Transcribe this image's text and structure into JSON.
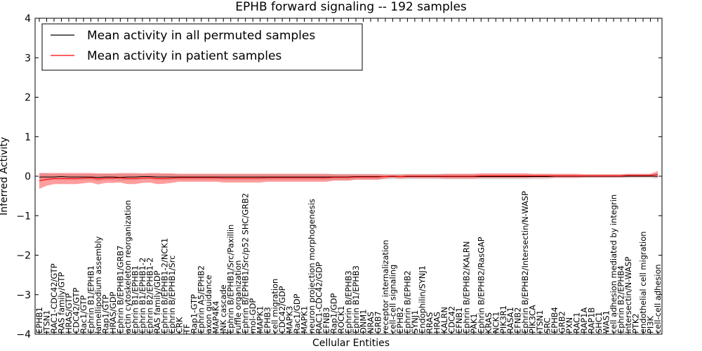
{
  "chart_data": {
    "type": "line",
    "title": "EPHB forward signaling -- 192 samples",
    "xlabel": "Cellular Entities",
    "ylabel": "Inferred Activity",
    "ylim": [
      -4,
      4
    ],
    "yticks": [
      -4,
      -3,
      -2,
      -1,
      0,
      1,
      2,
      3,
      4
    ],
    "grid": false,
    "legend_position": "top-left",
    "categories": [
      "EPHB1",
      "ITSN1",
      "RAC1-CDC42/GTP",
      "RAS family/GTP",
      "HRAS/GTP",
      "CDC42/GTP",
      "Rac1/GTP",
      "Ephrin B1/EPHB1",
      "lamellipodium assembly",
      "Rap1/GTP",
      "HRAS/GDP",
      "Ephrin B/EPHB1/GRB7",
      "actin cytoskeleton reorganization",
      "Ephrin B1/EPHB1",
      "Ephrin B1/EPHB1-2",
      "Ephrin B2/EPHB1-2",
      "RAS family/GDP",
      "Ephrin B/EPHB1-2/NCK1",
      "Ephrin B/EPHB1/Src",
      "CRK",
      "TF",
      "Rap1-GTP",
      "Ephrin A5/EPHB2",
      "axon guidance",
      "MAP4K4",
      "JNK cascade",
      "Ephrin B/EPHB1/Src/Paxillin",
      "ruffle organization",
      "Ephrin B/EPHB1/Src/p52 SHC/GRB2",
      "mol-GDP",
      "MAPK1",
      "EPHB3",
      "cell migration",
      "CDC42/GDP",
      "MAPK3",
      "Rac1/GDP",
      "MAPK1",
      "neuron projection morphogenesis",
      "RAC1-CDC42/GDP",
      "EFNB3",
      "Rap1/GDP",
      "ROCK1",
      "Ephrin B/EPHB3",
      "Ephrin B1/EPHB3",
      "DNM1",
      "NRAS",
      "GRB7",
      "receptor internalization",
      "cell-cell signaling",
      "EPHB2",
      "Ephrin B/EPHB2",
      "SYNJ1",
      "Endophilin/SYNJ1",
      "RRAS",
      "HRAS",
      "KALRN",
      "CDC42",
      "EFNB1",
      "Ephrin B/EPHB2/KALRN",
      "PAK1",
      "Ephrin B/EPHB2/RasGAP",
      "KRAS",
      "NCK1",
      "PIK3R1",
      "RASA1",
      "EFNB2",
      "Ephrin B/EPHB2/Intersectin/N-WASP",
      "PIK3CA",
      "ITSN1",
      "SRC",
      "EPHB4",
      "GRB2",
      "PXN",
      "RAC1",
      "RAP1A",
      "RAP1B",
      "SHC1",
      "WAS1",
      "cell adhesion mediated by integrin",
      "Ephrin B2/EPHB4",
      "Intersectin/N-WASP",
      "PTK2",
      "endothelial cell migration",
      "PI3K",
      "cell-cell adhesion"
    ],
    "series": [
      {
        "name": "Mean activity in all permuted samples",
        "color": "#000000",
        "values": [
          -0.02,
          -0.02,
          -0.02,
          -0.01,
          -0.02,
          -0.02,
          -0.02,
          -0.02,
          -0.03,
          -0.02,
          -0.02,
          -0.03,
          -0.02,
          -0.02,
          -0.01,
          -0.01,
          -0.02,
          -0.02,
          -0.02,
          -0.02,
          -0.02,
          -0.02,
          -0.02,
          -0.02,
          -0.02,
          -0.02,
          -0.02,
          -0.02,
          -0.02,
          -0.02,
          -0.02,
          -0.02,
          -0.02,
          -0.02,
          -0.02,
          -0.02,
          -0.02,
          -0.02,
          -0.02,
          -0.02,
          -0.02,
          -0.02,
          -0.02,
          -0.01,
          -0.01,
          -0.01,
          -0.01,
          -0.01,
          -0.01,
          -0.01,
          -0.01,
          -0.01,
          -0.01,
          -0.01,
          -0.01,
          -0.01,
          -0.01,
          -0.01,
          -0.01,
          -0.01,
          -0.01,
          -0.01,
          -0.01,
          -0.01,
          -0.01,
          -0.01,
          -0.01,
          -0.01,
          -0.01,
          -0.01,
          0.0,
          0.0,
          0.0,
          0.0,
          0.0,
          0.0,
          0.0,
          0.0,
          0.0,
          0.0,
          0.0,
          0.0,
          0.0,
          0.0,
          0.0
        ],
        "band": [
          0.09,
          0.09,
          0.08,
          0.08,
          0.08,
          0.08,
          0.08,
          0.08,
          0.09,
          0.08,
          0.08,
          0.09,
          0.08,
          0.08,
          0.07,
          0.07,
          0.08,
          0.08,
          0.08,
          0.08,
          0.08,
          0.08,
          0.08,
          0.08,
          0.08,
          0.08,
          0.08,
          0.08,
          0.08,
          0.08,
          0.08,
          0.08,
          0.08,
          0.08,
          0.08,
          0.08,
          0.08,
          0.08,
          0.08,
          0.08,
          0.08,
          0.08,
          0.08,
          0.07,
          0.07,
          0.07,
          0.07,
          0.07,
          0.07,
          0.07,
          0.07,
          0.07,
          0.07,
          0.07,
          0.07,
          0.07,
          0.07,
          0.07,
          0.07,
          0.07,
          0.07,
          0.07,
          0.07,
          0.07,
          0.07,
          0.07,
          0.07,
          0.07,
          0.07,
          0.07,
          0.05,
          0.05,
          0.05,
          0.05,
          0.05,
          0.05,
          0.05,
          0.05,
          0.05,
          0.05,
          0.05,
          0.05,
          0.05,
          0.05,
          0.07
        ]
      },
      {
        "name": "Mean activity in patient samples",
        "color": "#ff0000",
        "values": [
          -0.12,
          -0.08,
          -0.06,
          -0.06,
          -0.06,
          -0.06,
          -0.05,
          -0.04,
          -0.07,
          -0.05,
          -0.05,
          -0.04,
          -0.06,
          -0.06,
          -0.05,
          -0.04,
          -0.06,
          -0.06,
          -0.05,
          -0.04,
          -0.04,
          -0.04,
          -0.04,
          -0.04,
          -0.04,
          -0.05,
          -0.05,
          -0.05,
          -0.05,
          -0.05,
          -0.05,
          -0.04,
          -0.04,
          -0.04,
          -0.04,
          -0.04,
          -0.04,
          -0.04,
          -0.04,
          -0.04,
          -0.03,
          -0.03,
          -0.03,
          -0.02,
          -0.02,
          -0.02,
          -0.02,
          -0.01,
          0.0,
          -0.01,
          0.0,
          0.0,
          0.0,
          0.0,
          0.0,
          0.0,
          0.0,
          0.0,
          0.0,
          0.0,
          0.01,
          0.01,
          0.01,
          0.01,
          0.01,
          0.01,
          0.01,
          0.01,
          0.01,
          0.01,
          0.01,
          0.01,
          0.01,
          0.01,
          0.01,
          0.01,
          0.01,
          0.01,
          0.01,
          0.01,
          0.02,
          0.02,
          0.02,
          0.02,
          0.05
        ],
        "band": [
          0.2,
          0.16,
          0.14,
          0.14,
          0.14,
          0.14,
          0.13,
          0.12,
          0.14,
          0.12,
          0.12,
          0.12,
          0.14,
          0.14,
          0.12,
          0.12,
          0.14,
          0.13,
          0.12,
          0.1,
          0.1,
          0.1,
          0.1,
          0.1,
          0.1,
          0.11,
          0.11,
          0.11,
          0.11,
          0.11,
          0.11,
          0.1,
          0.1,
          0.1,
          0.1,
          0.1,
          0.1,
          0.1,
          0.1,
          0.1,
          0.08,
          0.08,
          0.08,
          0.07,
          0.07,
          0.07,
          0.07,
          0.05,
          0.04,
          0.05,
          0.05,
          0.05,
          0.05,
          0.05,
          0.05,
          0.06,
          0.06,
          0.06,
          0.06,
          0.06,
          0.06,
          0.06,
          0.06,
          0.06,
          0.06,
          0.06,
          0.06,
          0.05,
          0.05,
          0.05,
          0.05,
          0.05,
          0.05,
          0.05,
          0.04,
          0.04,
          0.04,
          0.04,
          0.04,
          0.04,
          0.04,
          0.04,
          0.04,
          0.04,
          0.08
        ]
      }
    ]
  }
}
